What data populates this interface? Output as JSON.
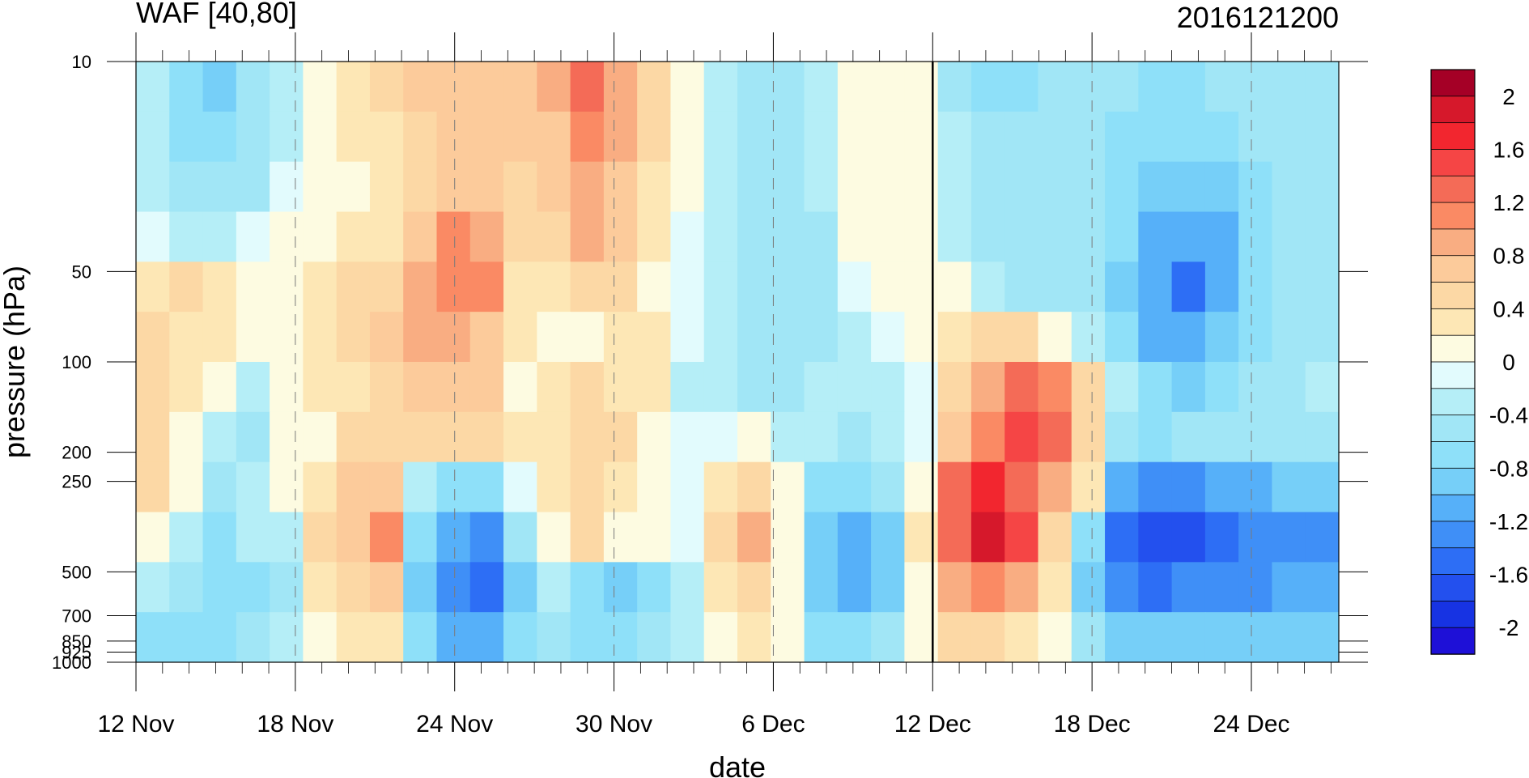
{
  "chart_data": {
    "type": "heatmap",
    "title_left": "WAF [40,80]",
    "title_right": "2016121200",
    "xlabel": "date",
    "ylabel": "pressure (hPa)",
    "x_ticks": [
      "12 Nov",
      "18 Nov",
      "24 Nov",
      "30 Nov",
      "6 Dec",
      "12 Dec",
      "18 Dec",
      "24 Dec"
    ],
    "x_range": [
      "12 Nov",
      "27 Dec"
    ],
    "y_ticks": [
      "10",
      "50",
      "100",
      "200",
      "250",
      "500",
      "700",
      "850",
      "925",
      "1000"
    ],
    "y_levels": [
      10,
      50,
      100,
      200,
      250,
      500,
      700,
      850,
      925,
      1000
    ],
    "y_range": [
      1000,
      10
    ],
    "y_scale": "log",
    "marker_date": "12 Dec",
    "colorbar_labels": [
      "2",
      "1.6",
      "1.2",
      "0.8",
      "0.4",
      "0",
      "-0.4",
      "-0.8",
      "-1.2",
      "-1.6",
      "-2"
    ],
    "contour_levels": [
      2.2,
      2,
      1.8,
      1.6,
      1.4,
      1.2,
      1,
      0.8,
      0.6,
      0.4,
      0.2,
      0,
      -0.2,
      -0.4,
      -0.6,
      -0.8,
      -1,
      -1.2,
      -1.4,
      -1.6,
      -1.8,
      -2,
      -2.2
    ],
    "colors": [
      "#a50026",
      "#d6182b",
      "#f2262f",
      "#f54545",
      "#f46b57",
      "#fa8a64",
      "#f9ad82",
      "#fccb9b",
      "#fcd8a5",
      "#fde7b5",
      "#fdfbe1",
      "#e2fbfd",
      "#b5eef7",
      "#a1e6f6",
      "#8ee0f9",
      "#76cff8",
      "#56b0f9",
      "#3f8ff7",
      "#2d6ef5",
      "#2350ee",
      "#1733e3",
      "#1e10d7"
    ],
    "grid_values": [
      [
        -0.3,
        -0.6,
        -0.9,
        -0.5,
        -0.2,
        0.2,
        0.3,
        0.5,
        0.7,
        0.8,
        0.8,
        0.7,
        0.9,
        1.4,
        0.9,
        0.5,
        0.1,
        -0.3,
        -0.5,
        -0.4,
        -0.3,
        0.05,
        0.05,
        0.05,
        -0.4,
        -0.6,
        -0.6,
        -0.5,
        -0.4,
        -0.5,
        -0.6,
        -0.6,
        -0.5,
        -0.4,
        -0.4,
        -0.4
      ],
      [
        -0.3,
        -0.6,
        -0.7,
        -0.5,
        -0.2,
        0.1,
        0.3,
        0.4,
        0.6,
        0.7,
        0.7,
        0.7,
        0.8,
        1.2,
        0.9,
        0.5,
        0.1,
        -0.2,
        -0.4,
        -0.4,
        -0.3,
        0.05,
        0.05,
        0.05,
        -0.3,
        -0.5,
        -0.5,
        -0.4,
        -0.5,
        -0.6,
        -0.7,
        -0.7,
        -0.6,
        -0.5,
        -0.4,
        -0.4
      ],
      [
        -0.2,
        -0.4,
        -0.5,
        -0.4,
        -0.1,
        0.1,
        0.2,
        0.3,
        0.6,
        0.8,
        0.8,
        0.6,
        0.7,
        1.0,
        0.8,
        0.4,
        0.1,
        -0.2,
        -0.4,
        -0.4,
        -0.3,
        0.05,
        0.05,
        0.05,
        -0.3,
        -0.5,
        -0.4,
        -0.4,
        -0.5,
        -0.7,
        -0.9,
        -0.9,
        -0.8,
        -0.6,
        -0.4,
        -0.4
      ],
      [
        -0.1,
        -0.2,
        -0.2,
        -0.1,
        0.05,
        0.1,
        0.3,
        0.4,
        0.8,
        1.1,
        1.0,
        0.5,
        0.6,
        0.9,
        0.7,
        0.3,
        0.0,
        -0.3,
        -0.4,
        -0.5,
        -0.4,
        0.05,
        0.05,
        0.05,
        -0.3,
        -0.5,
        -0.4,
        -0.4,
        -0.5,
        -0.7,
        -1.0,
        -1.1,
        -1.0,
        -0.7,
        -0.5,
        -0.4
      ],
      [
        0.3,
        0.5,
        0.3,
        0.2,
        0.05,
        0.3,
        0.5,
        0.6,
        1.0,
        1.2,
        1.1,
        0.4,
        0.3,
        0.6,
        0.5,
        0.2,
        -0.1,
        -0.3,
        -0.5,
        -0.5,
        -0.4,
        0.0,
        0.05,
        0.05,
        0.2,
        -0.2,
        -0.4,
        -0.4,
        -0.5,
        -0.8,
        -1.1,
        -1.4,
        -1.1,
        -0.7,
        -0.5,
        -0.4
      ],
      [
        0.5,
        0.4,
        0.3,
        0.2,
        0.1,
        0.4,
        0.6,
        0.7,
        0.9,
        1.0,
        0.8,
        0.3,
        0.2,
        0.2,
        0.4,
        0.3,
        -0.1,
        -0.3,
        -0.4,
        -0.5,
        -0.4,
        -0.2,
        0.0,
        0.05,
        0.4,
        0.6,
        0.5,
        0.2,
        -0.2,
        -0.6,
        -1.0,
        -1.1,
        -0.9,
        -0.6,
        -0.4,
        -0.4
      ],
      [
        0.6,
        0.3,
        0.1,
        -0.3,
        0.05,
        0.3,
        0.4,
        0.6,
        0.7,
        0.8,
        0.7,
        0.2,
        0.3,
        0.5,
        0.4,
        0.3,
        -0.2,
        -0.3,
        -0.4,
        -0.4,
        -0.3,
        -0.3,
        -0.2,
        -0.1,
        0.5,
        1.0,
        1.3,
        1.2,
        0.5,
        -0.3,
        -0.7,
        -0.8,
        -0.6,
        -0.5,
        -0.4,
        -0.3
      ],
      [
        0.5,
        0.2,
        -0.3,
        -0.4,
        0.1,
        0.2,
        0.5,
        0.6,
        0.5,
        0.6,
        0.6,
        0.3,
        0.4,
        0.6,
        0.5,
        0.2,
        -0.1,
        0.0,
        0.2,
        -0.2,
        -0.3,
        -0.4,
        -0.3,
        -0.1,
        0.8,
        1.2,
        1.5,
        1.3,
        0.6,
        -0.4,
        -0.6,
        -0.5,
        -0.4,
        -0.5,
        -0.4,
        -0.4
      ],
      [
        0.6,
        0.1,
        -0.5,
        -0.3,
        0.05,
        0.3,
        0.7,
        0.8,
        -0.2,
        -0.6,
        -0.6,
        0.0,
        0.3,
        0.5,
        0.3,
        0.2,
        0.0,
        0.3,
        0.6,
        0.1,
        -0.6,
        -0.6,
        -0.5,
        0.2,
        1.3,
        1.7,
        1.4,
        1.0,
        0.3,
        -1.0,
        -1.3,
        -1.2,
        -1.1,
        -1.0,
        -0.9,
        -0.8
      ],
      [
        0.1,
        -0.2,
        -0.6,
        -0.3,
        -0.2,
        0.6,
        0.8,
        1.1,
        -0.6,
        -1.0,
        -1.2,
        -0.4,
        0.2,
        0.5,
        0.1,
        0.1,
        0.0,
        0.6,
        0.9,
        0.2,
        -0.8,
        -1.0,
        -0.8,
        0.4,
        1.4,
        1.9,
        1.5,
        0.6,
        -0.6,
        -1.5,
        -1.7,
        -1.6,
        -1.4,
        -1.3,
        -1.2,
        -1.2
      ],
      [
        -0.3,
        -0.5,
        -0.7,
        -0.6,
        -0.4,
        0.3,
        0.6,
        0.8,
        -0.9,
        -1.3,
        -1.5,
        -0.8,
        -0.2,
        -0.6,
        -0.8,
        -0.6,
        -0.3,
        0.3,
        0.6,
        0.2,
        -0.9,
        -1.0,
        -0.8,
        0.2,
        1.0,
        1.2,
        0.9,
        0.3,
        -0.8,
        -1.3,
        -1.4,
        -1.3,
        -1.2,
        -1.2,
        -1.1,
        -1.1
      ],
      [
        -0.6,
        -0.7,
        -0.6,
        -0.5,
        -0.3,
        0.1,
        0.3,
        0.4,
        -0.7,
        -1.0,
        -1.1,
        -0.7,
        -0.4,
        -0.6,
        -0.7,
        -0.5,
        -0.3,
        0.1,
        0.3,
        0.1,
        -0.6,
        -0.7,
        -0.5,
        0.1,
        0.5,
        0.6,
        0.4,
        0.1,
        -0.5,
        -0.8,
        -0.9,
        -0.8,
        -0.8,
        -0.8,
        -0.8,
        -0.8
      ]
    ]
  }
}
